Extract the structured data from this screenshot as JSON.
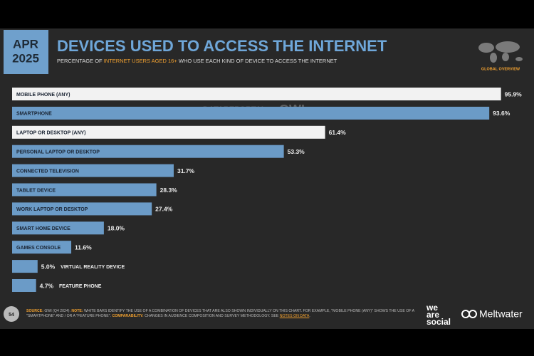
{
  "header": {
    "date_month": "APR",
    "date_year": "2025",
    "title": "DEVICES USED TO ACCESS THE INTERNET",
    "subtitle_parts": [
      "PERCENTAGE OF ",
      "INTERNET USERS AGED 16+",
      " WHO USE EACH KIND OF DEVICE TO ACCESS THE INTERNET"
    ],
    "section": "GLOBAL OVERVIEW",
    "watermark_1": "DATAREPORTAL",
    "watermark_2": "GWI."
  },
  "chart_data": {
    "type": "bar",
    "orientation": "horizontal",
    "categories": [
      "MOBILE PHONE (ANY)",
      "SMARTPHONE",
      "LAPTOP OR DESKTOP (ANY)",
      "PERSONAL LAPTOP OR DESKTOP",
      "CONNECTED TELEVISION",
      "TABLET DEVICE",
      "WORK LAPTOP OR DESKTOP",
      "SMART HOME DEVICE",
      "GAMES CONSOLE",
      "VIRTUAL REALITY DEVICE",
      "FEATURE PHONE"
    ],
    "values": [
      95.9,
      93.6,
      61.4,
      53.3,
      31.7,
      28.3,
      27.4,
      18.0,
      11.6,
      5.0,
      4.7
    ],
    "value_labels": [
      "95.9%",
      "93.6%",
      "61.4%",
      "53.3%",
      "31.7%",
      "28.3%",
      "27.4%",
      "18.0%",
      "11.6%",
      "5.0%",
      "4.7%"
    ],
    "colors": [
      "#f2f2f2",
      "#6b9bc7",
      "#f2f2f2",
      "#6b9bc7",
      "#6b9bc7",
      "#6b9bc7",
      "#6b9bc7",
      "#6b9bc7",
      "#6b9bc7",
      "#6b9bc7",
      "#6b9bc7"
    ],
    "xlim": [
      0,
      100
    ]
  },
  "footer": {
    "page": "54",
    "source_label": "SOURCE:",
    "source": " GWI (Q4 2024). ",
    "note_label": "NOTE:",
    "note": " WHITE BARS IDENTIFY THE USE OF A COMBINATION OF DEVICES THAT ARE ALSO SHOWN INDIVIDUALLY ON THIS CHART. FOR EXAMPLE, \"MOBILE PHONE (ANY)\" SHOWS THE USE OF A \"SMARTPHONE\" AND / OR A \"FEATURE PHONE\". ",
    "comparability_label": "COMPARABILITY:",
    "comparability": " CHANGES IN AUDIENCE COMPOSITION AND SURVEY METHODOLOGY. SEE ",
    "notes_link": "NOTES ON DATA",
    "end": ".",
    "logo_1": [
      "we",
      "are",
      "social"
    ],
    "logo_2": "Meltwater"
  }
}
